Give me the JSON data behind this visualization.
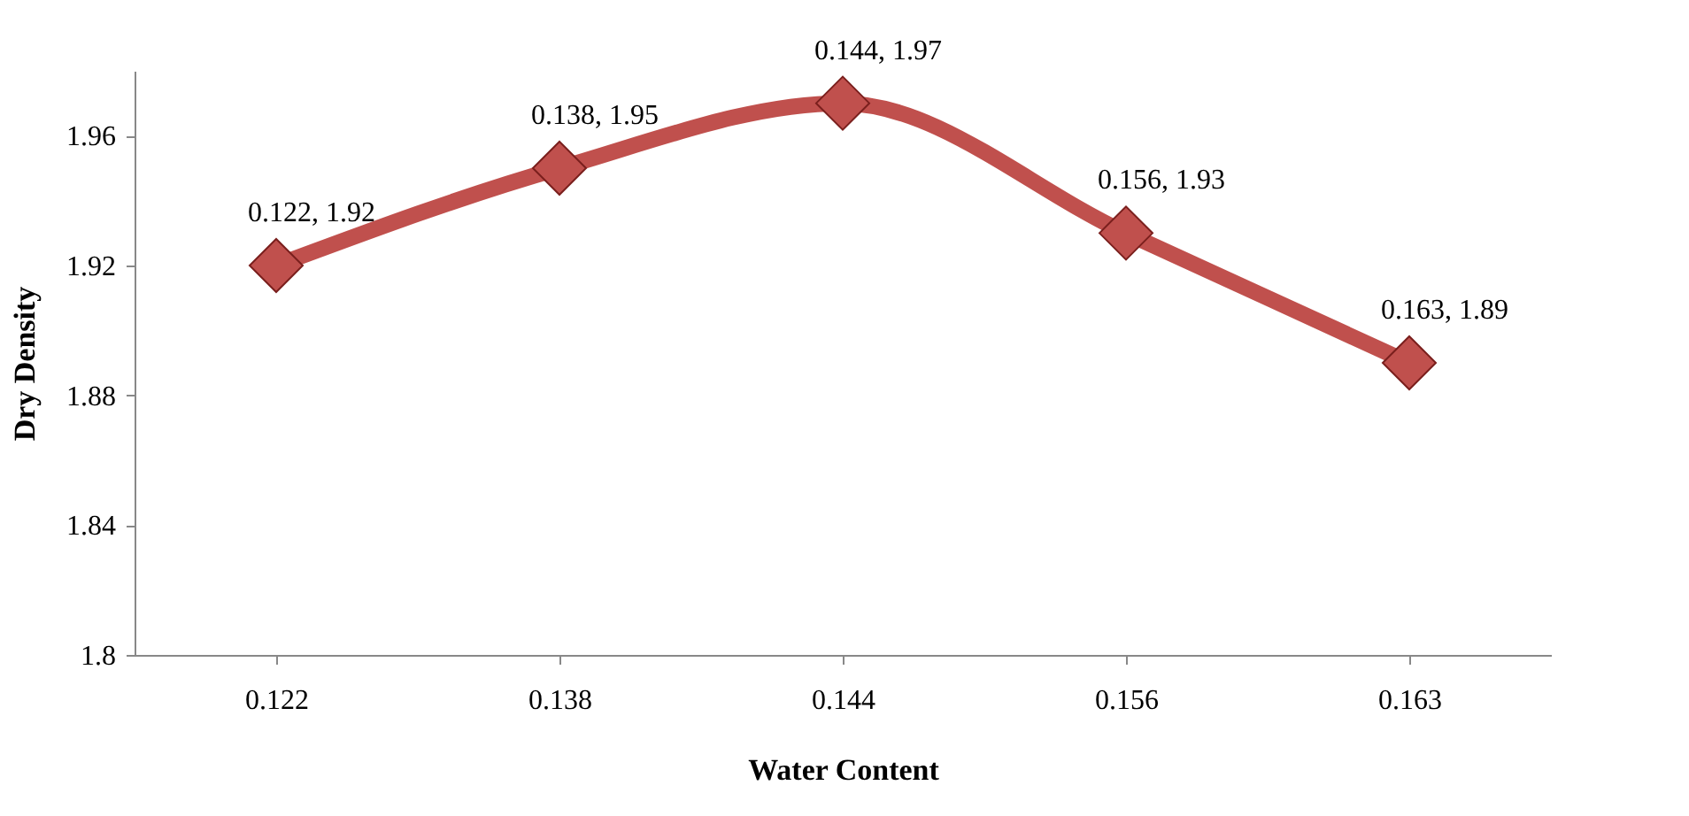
{
  "chart_data": {
    "type": "line",
    "xlabel": "Water Content",
    "ylabel": "Dry Density",
    "categories": [
      "0.122",
      "0.138",
      "0.144",
      "0.156",
      "0.163"
    ],
    "series": [
      {
        "color": "#c0504d",
        "values": [
          1.92,
          1.95,
          1.97,
          1.93,
          1.89
        ],
        "value_labels": [
          "0.122, 1.92",
          "0.138, 1.95",
          "0.144, 1.97",
          "0.156, 1.93",
          "0.163, 1.89"
        ]
      }
    ],
    "ylim": [
      1.8,
      1.98
    ],
    "yticks": [
      1.8,
      1.84,
      1.88,
      1.92,
      1.96
    ],
    "grid": false,
    "marker": "diamond",
    "line_style": "solid"
  }
}
